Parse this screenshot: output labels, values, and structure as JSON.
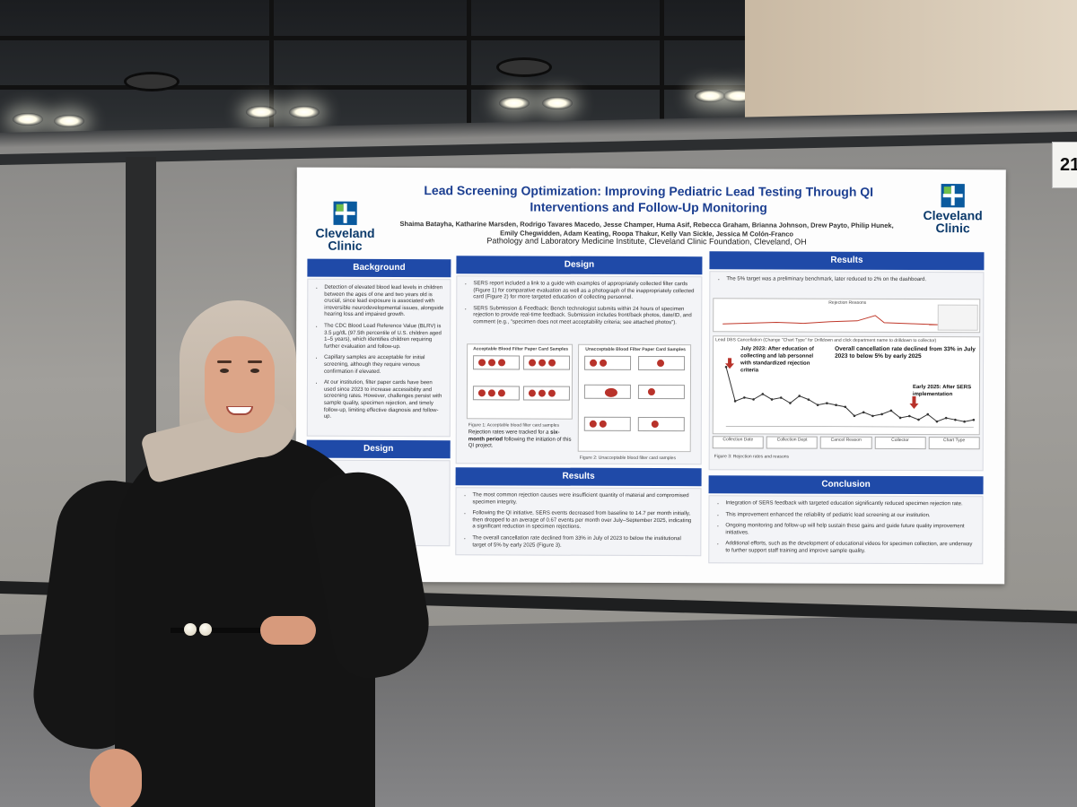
{
  "booth_number": "21",
  "poster": {
    "title": "Lead Screening Optimization: Improving Pediatric Lead Testing Through QI Interventions and Follow-Up Monitoring",
    "authors": "Shaima Batayha, Katharine Marsden, Rodrigo Tavares Macedo, Jesse Champer, Huma Asif, Rebecca Graham, Brianna Johnson, Drew Payto, Philip Hunek, Emily Chegwidden, Adam Keating, Roopa Thakur, Kelly Van Sickle, Jessica M Colón-Franco",
    "affiliation": "Pathology and Laboratory Medicine Institute, Cleveland Clinic Foundation, Cleveland, OH",
    "logo_text_1": "Cleveland",
    "logo_text_2": "Clinic",
    "background": {
      "heading": "Background",
      "items": [
        "Detection of elevated blood lead levels in children between the ages of one and two years old is crucial, since lead exposure is associated with irreversible neurodevelopmental issues, alongside hearing loss and impaired growth.",
        "The CDC Blood Lead Reference Value (BLRV) is 3.5 µg/dL (97.5th percentile of U.S. children aged 1–5 years), which identifies children requiring further evaluation and follow-up.",
        "Capillary samples are acceptable for initial screening, although they require venous confirmation if elevated.",
        "At our institution, filter paper cards have been used since 2023 to increase accessibility and screening rates. However, challenges persist with sample quality, specimen rejection, and timely follow-up, limiting effective diagnosis and follow-up."
      ]
    },
    "design_left": {
      "heading": "Design"
    },
    "design": {
      "heading": "Design",
      "items": [
        "SERS report included a link to a guide with examples of appropriately collected filter cards (Figure 1) for comparative evaluation as well as a photograph of the inappropriately collected card (Figure 2) for more targeted education of collecting personnel.",
        "SERS Submission & Feedback: Bench technologist submits within 24 hours of specimen rejection to provide real-time feedback. Submission includes front/back photos, date/ID, and comment (e.g., \"specimen does not meet acceptability criteria; see attached photos\")."
      ],
      "acceptable_title": "Acceptable Blood Filter Paper Card Samples",
      "unacceptable_title": "Unacceptable Blood Filter Paper Card Samples",
      "figure1_caption": "Figure 1: Acceptable blood filter card samples",
      "figure2_caption": "Figure 2: Unacceptable blood filter card samples",
      "tracking_note_pre": "Rejection rates were tracked for a ",
      "tracking_note_bold": "six-month period",
      "tracking_note_post": " following the initiation of this QI project."
    },
    "results_middle": {
      "heading": "Results",
      "items": [
        "The most common rejection causes were insufficient quantity of material and compromised specimen integrity.",
        "Following the QI initiative, SERS events decreased from baseline to 14.7 per month initially, then dropped to an average of 0.67 events per month over July–September 2025, indicating a significant reduction in specimen rejections.",
        "The overall cancellation rate declined from 33% in July of 2023 to below the institutional target of 5% by early 2025 (Figure 3)."
      ]
    },
    "results_right": {
      "heading": "Results",
      "intro": "The 5% target was a preliminary benchmark, later reduced to 2% on the dashboard.",
      "chart_top_title": "Rejection Reasons",
      "chart_main_title": "Lead DBS Cancellation (Change \"Chart Type\" for Drilldown and click department name to drilldown to collector)",
      "annotation_1": "July 2023: After education of collecting and lab personnel with standardized rejection criteria",
      "annotation_2_pre": "Overall cancellation rate declined from ",
      "annotation_2_bold1": "33%",
      "annotation_2_mid": " in July 2023 to ",
      "annotation_2_bold2": "below 5%",
      "annotation_2_post": " by early 2025",
      "annotation_3": "Early 2025: After SERS implementation",
      "figure3_caption": "Figure 3: Rejection rates and reasons",
      "filter_labels": [
        "Collection Date",
        "Collection Dept",
        "Cancel Reason",
        "Collector",
        "Chart Type"
      ]
    },
    "conclusion": {
      "heading": "Conclusion",
      "items": [
        "Integration of SERS feedback with targeted education significantly reduced specimen rejection rate.",
        "This improvement enhanced the reliability of pediatric lead screening at our institution.",
        "Ongoing monitoring and follow-up will help sustain these gains and guide future quality improvement initiatives.",
        "Additional efforts, such as the development of educational videos for specimen collection, are underway to further support staff training and improve sample quality."
      ]
    }
  },
  "colors": {
    "header_blue": "#1f4aa8",
    "title_blue": "#1c3f91",
    "logo_green": "#6fbf4a",
    "line_red": "#b8322a"
  },
  "chart_data": {
    "type": "line",
    "series": [
      {
        "values": [
          33,
          14,
          16,
          15,
          18,
          15,
          16,
          13,
          17,
          15,
          12,
          13,
          12,
          11,
          6,
          8,
          6,
          7,
          9,
          5,
          6,
          4,
          7,
          3,
          5,
          4,
          3,
          4
        ]
      }
    ]
  }
}
